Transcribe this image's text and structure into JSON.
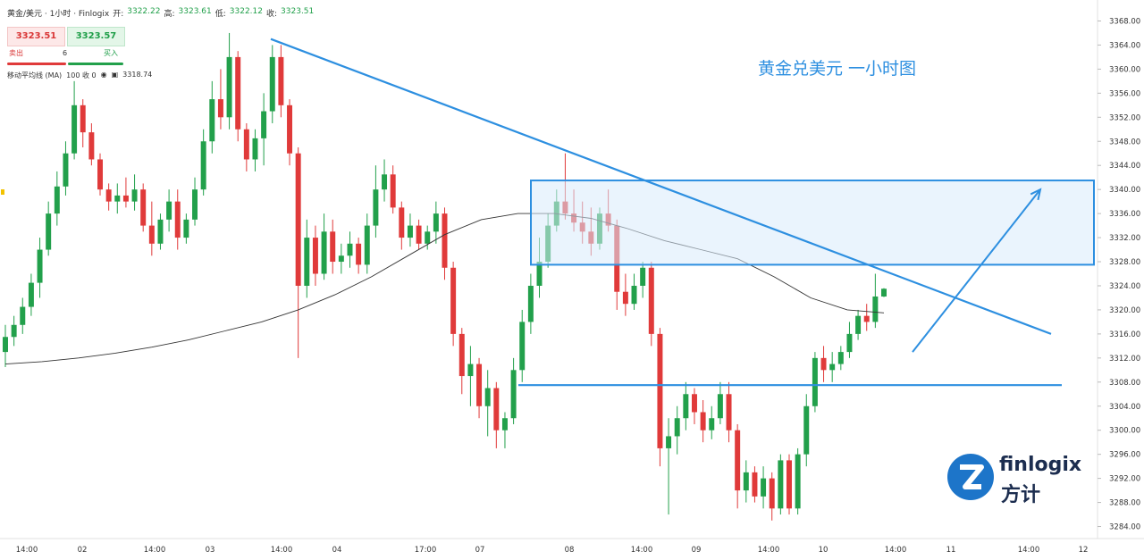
{
  "header": {
    "symbol": "黄金/美元 · 1小时 · Finlogix",
    "open_label": "开:",
    "open": "3322.22",
    "high_label": "高:",
    "high": "3323.61",
    "low_label": "低:",
    "low": "3322.12",
    "close_label": "收:",
    "close": "3323.51"
  },
  "trade": {
    "sell_price": "3323.51",
    "buy_price": "3323.57",
    "sell_label": "卖出",
    "buy_label": "买入",
    "quantity": "6"
  },
  "indicator": {
    "name": "移动平均线 (MA)",
    "params": "100 收 0",
    "icon": "eye-icon",
    "value": "3318.74"
  },
  "annotation": "黄金兑美元 一小时图",
  "logo": {
    "en": "finlogix",
    "cn": "方计"
  },
  "colors": {
    "up": "#22a04b",
    "down": "#e03a3a",
    "accent": "#2d8fe0",
    "ma": "#333333"
  },
  "chart_data": {
    "type": "candlestick",
    "ylim": [
      3282,
      3370
    ],
    "y_ticks": [
      3284.0,
      3288.0,
      3292.0,
      3296.0,
      3300.0,
      3304.0,
      3308.0,
      3312.0,
      3316.0,
      3320.0,
      3324.0,
      3328.0,
      3332.0,
      3336.0,
      3340.0,
      3344.0,
      3348.0,
      3352.0,
      3356.0,
      3360.0,
      3364.0,
      3368.0
    ],
    "x_tick_labels": [
      "14:00",
      "02",
      "14:00",
      "03",
      "14:00",
      "04",
      "17:00",
      "07",
      "08",
      "14:00",
      "09",
      "14:00",
      "10",
      "14:00",
      "11",
      "14:00",
      "12"
    ],
    "candles": [
      {
        "o": 3313.0,
        "h": 3317.5,
        "l": 3310.5,
        "c": 3315.5
      },
      {
        "o": 3315.5,
        "h": 3319.0,
        "l": 3314.0,
        "c": 3317.5
      },
      {
        "o": 3317.5,
        "h": 3322.0,
        "l": 3316.0,
        "c": 3320.5
      },
      {
        "o": 3320.5,
        "h": 3326.0,
        "l": 3319.0,
        "c": 3324.5
      },
      {
        "o": 3324.5,
        "h": 3332.0,
        "l": 3322.0,
        "c": 3330.0
      },
      {
        "o": 3330.0,
        "h": 3338.0,
        "l": 3329.0,
        "c": 3336.0
      },
      {
        "o": 3336.0,
        "h": 3343.0,
        "l": 3334.0,
        "c": 3340.5
      },
      {
        "o": 3340.5,
        "h": 3348.0,
        "l": 3339.0,
        "c": 3346.0
      },
      {
        "o": 3346.0,
        "h": 3358.0,
        "l": 3345.0,
        "c": 3354.0
      },
      {
        "o": 3354.0,
        "h": 3355.0,
        "l": 3347.0,
        "c": 3349.5
      },
      {
        "o": 3349.5,
        "h": 3351.0,
        "l": 3344.0,
        "c": 3345.0
      },
      {
        "o": 3345.0,
        "h": 3346.0,
        "l": 3339.0,
        "c": 3340.0
      },
      {
        "o": 3340.0,
        "h": 3341.0,
        "l": 3336.5,
        "c": 3338.0
      },
      {
        "o": 3338.0,
        "h": 3341.0,
        "l": 3336.0,
        "c": 3339.0
      },
      {
        "o": 3339.0,
        "h": 3342.0,
        "l": 3337.0,
        "c": 3338.0
      },
      {
        "o": 3338.0,
        "h": 3342.5,
        "l": 3336.5,
        "c": 3340.0
      },
      {
        "o": 3340.0,
        "h": 3341.0,
        "l": 3333.0,
        "c": 3334.0
      },
      {
        "o": 3334.0,
        "h": 3338.0,
        "l": 3329.0,
        "c": 3331.0
      },
      {
        "o": 3331.0,
        "h": 3336.0,
        "l": 3330.0,
        "c": 3335.0
      },
      {
        "o": 3335.0,
        "h": 3340.0,
        "l": 3333.0,
        "c": 3338.0
      },
      {
        "o": 3338.0,
        "h": 3340.0,
        "l": 3330.0,
        "c": 3332.0
      },
      {
        "o": 3332.0,
        "h": 3336.0,
        "l": 3331.0,
        "c": 3335.0
      },
      {
        "o": 3335.0,
        "h": 3342.0,
        "l": 3334.0,
        "c": 3340.0
      },
      {
        "o": 3340.0,
        "h": 3350.0,
        "l": 3339.0,
        "c": 3348.0
      },
      {
        "o": 3348.0,
        "h": 3358.0,
        "l": 3346.0,
        "c": 3355.0
      },
      {
        "o": 3355.0,
        "h": 3360.0,
        "l": 3350.0,
        "c": 3352.0
      },
      {
        "o": 3352.0,
        "h": 3366.0,
        "l": 3350.0,
        "c": 3362.0
      },
      {
        "o": 3362.0,
        "h": 3363.0,
        "l": 3348.0,
        "c": 3350.0
      },
      {
        "o": 3350.0,
        "h": 3351.0,
        "l": 3343.0,
        "c": 3345.0
      },
      {
        "o": 3345.0,
        "h": 3350.0,
        "l": 3343.0,
        "c": 3348.5
      },
      {
        "o": 3348.5,
        "h": 3356.0,
        "l": 3344.0,
        "c": 3353.0
      },
      {
        "o": 3353.0,
        "h": 3364.0,
        "l": 3351.0,
        "c": 3362.0
      },
      {
        "o": 3362.0,
        "h": 3364.0,
        "l": 3352.0,
        "c": 3354.0
      },
      {
        "o": 3354.0,
        "h": 3355.0,
        "l": 3344.0,
        "c": 3346.0
      },
      {
        "o": 3346.0,
        "h": 3347.0,
        "l": 3312.0,
        "c": 3324.0
      },
      {
        "o": 3324.0,
        "h": 3335.0,
        "l": 3322.0,
        "c": 3332.0
      },
      {
        "o": 3332.0,
        "h": 3334.0,
        "l": 3324.0,
        "c": 3326.0
      },
      {
        "o": 3326.0,
        "h": 3336.0,
        "l": 3325.0,
        "c": 3333.0
      },
      {
        "o": 3333.0,
        "h": 3335.0,
        "l": 3326.0,
        "c": 3328.0
      },
      {
        "o": 3328.0,
        "h": 3331.0,
        "l": 3326.0,
        "c": 3329.0
      },
      {
        "o": 3329.0,
        "h": 3333.0,
        "l": 3327.0,
        "c": 3331.0
      },
      {
        "o": 3331.0,
        "h": 3332.0,
        "l": 3326.0,
        "c": 3327.5
      },
      {
        "o": 3327.5,
        "h": 3336.0,
        "l": 3326.0,
        "c": 3334.0
      },
      {
        "o": 3334.0,
        "h": 3344.0,
        "l": 3332.0,
        "c": 3340.0
      },
      {
        "o": 3340.0,
        "h": 3345.0,
        "l": 3338.0,
        "c": 3342.5
      },
      {
        "o": 3342.5,
        "h": 3344.0,
        "l": 3336.0,
        "c": 3337.0
      },
      {
        "o": 3337.0,
        "h": 3338.0,
        "l": 3330.0,
        "c": 3332.0
      },
      {
        "o": 3332.0,
        "h": 3336.0,
        "l": 3330.5,
        "c": 3334.0
      },
      {
        "o": 3334.0,
        "h": 3335.0,
        "l": 3330.0,
        "c": 3331.0
      },
      {
        "o": 3331.0,
        "h": 3334.0,
        "l": 3330.0,
        "c": 3333.0
      },
      {
        "o": 3333.0,
        "h": 3338.0,
        "l": 3331.0,
        "c": 3336.0
      },
      {
        "o": 3336.0,
        "h": 3337.0,
        "l": 3325.0,
        "c": 3327.0
      },
      {
        "o": 3327.0,
        "h": 3328.0,
        "l": 3314.0,
        "c": 3316.0
      },
      {
        "o": 3316.0,
        "h": 3317.0,
        "l": 3306.0,
        "c": 3309.0
      },
      {
        "o": 3309.0,
        "h": 3314.0,
        "l": 3304.0,
        "c": 3311.0
      },
      {
        "o": 3311.0,
        "h": 3312.0,
        "l": 3302.0,
        "c": 3304.0
      },
      {
        "o": 3304.0,
        "h": 3310.0,
        "l": 3299.0,
        "c": 3307.0
      },
      {
        "o": 3307.0,
        "h": 3308.0,
        "l": 3297.0,
        "c": 3300.0
      },
      {
        "o": 3300.0,
        "h": 3303.0,
        "l": 3297.0,
        "c": 3302.0
      },
      {
        "o": 3302.0,
        "h": 3312.0,
        "l": 3301.0,
        "c": 3310.0
      },
      {
        "o": 3310.0,
        "h": 3320.0,
        "l": 3308.0,
        "c": 3318.0
      },
      {
        "o": 3318.0,
        "h": 3326.0,
        "l": 3316.0,
        "c": 3324.0
      },
      {
        "o": 3324.0,
        "h": 3332.0,
        "l": 3322.0,
        "c": 3328.0
      },
      {
        "o": 3328.0,
        "h": 3336.0,
        "l": 3327.0,
        "c": 3334.0
      },
      {
        "o": 3334.0,
        "h": 3340.0,
        "l": 3333.0,
        "c": 3338.0
      },
      {
        "o": 3338.0,
        "h": 3346.0,
        "l": 3335.0,
        "c": 3336.0
      },
      {
        "o": 3336.0,
        "h": 3340.0,
        "l": 3333.0,
        "c": 3334.5
      },
      {
        "o": 3334.5,
        "h": 3338.0,
        "l": 3331.0,
        "c": 3333.0
      },
      {
        "o": 3333.0,
        "h": 3337.0,
        "l": 3329.0,
        "c": 3331.0
      },
      {
        "o": 3331.0,
        "h": 3337.0,
        "l": 3330.0,
        "c": 3336.0
      },
      {
        "o": 3336.0,
        "h": 3340.0,
        "l": 3333.0,
        "c": 3334.0
      },
      {
        "o": 3334.0,
        "h": 3335.0,
        "l": 3320.0,
        "c": 3323.0
      },
      {
        "o": 3323.0,
        "h": 3326.0,
        "l": 3319.0,
        "c": 3321.0
      },
      {
        "o": 3321.0,
        "h": 3326.0,
        "l": 3320.0,
        "c": 3324.0
      },
      {
        "o": 3324.0,
        "h": 3328.0,
        "l": 3322.0,
        "c": 3327.0
      },
      {
        "o": 3327.0,
        "h": 3328.0,
        "l": 3314.0,
        "c": 3316.0
      },
      {
        "o": 3316.0,
        "h": 3317.0,
        "l": 3294.0,
        "c": 3297.0
      },
      {
        "o": 3297.0,
        "h": 3302.0,
        "l": 3286.0,
        "c": 3299.0
      },
      {
        "o": 3299.0,
        "h": 3304.0,
        "l": 3296.0,
        "c": 3302.0
      },
      {
        "o": 3302.0,
        "h": 3308.0,
        "l": 3300.0,
        "c": 3306.0
      },
      {
        "o": 3306.0,
        "h": 3307.0,
        "l": 3301.0,
        "c": 3303.0
      },
      {
        "o": 3303.0,
        "h": 3305.0,
        "l": 3298.0,
        "c": 3300.0
      },
      {
        "o": 3300.0,
        "h": 3304.0,
        "l": 3298.5,
        "c": 3302.0
      },
      {
        "o": 3302.0,
        "h": 3308.0,
        "l": 3301.0,
        "c": 3306.0
      },
      {
        "o": 3306.0,
        "h": 3308.0,
        "l": 3298.0,
        "c": 3300.0
      },
      {
        "o": 3300.0,
        "h": 3301.0,
        "l": 3287.0,
        "c": 3290.0
      },
      {
        "o": 3290.0,
        "h": 3295.0,
        "l": 3288.0,
        "c": 3293.0
      },
      {
        "o": 3293.0,
        "h": 3294.0,
        "l": 3288.0,
        "c": 3289.0
      },
      {
        "o": 3289.0,
        "h": 3294.0,
        "l": 3287.0,
        "c": 3292.0
      },
      {
        "o": 3292.0,
        "h": 3293.0,
        "l": 3285.0,
        "c": 3287.0
      },
      {
        "o": 3287.0,
        "h": 3296.0,
        "l": 3286.0,
        "c": 3295.0
      },
      {
        "o": 3295.0,
        "h": 3296.0,
        "l": 3286.0,
        "c": 3287.0
      },
      {
        "o": 3287.0,
        "h": 3297.0,
        "l": 3286.0,
        "c": 3296.0
      },
      {
        "o": 3296.0,
        "h": 3306.0,
        "l": 3294.0,
        "c": 3304.0
      },
      {
        "o": 3304.0,
        "h": 3313.0,
        "l": 3303.0,
        "c": 3312.0
      },
      {
        "o": 3312.0,
        "h": 3314.0,
        "l": 3308.0,
        "c": 3310.0
      },
      {
        "o": 3310.0,
        "h": 3313.0,
        "l": 3308.0,
        "c": 3311.0
      },
      {
        "o": 3311.0,
        "h": 3314.0,
        "l": 3310.0,
        "c": 3313.0
      },
      {
        "o": 3313.0,
        "h": 3318.0,
        "l": 3312.0,
        "c": 3316.0
      },
      {
        "o": 3316.0,
        "h": 3320.0,
        "l": 3315.0,
        "c": 3319.0
      },
      {
        "o": 3319.0,
        "h": 3321.0,
        "l": 3316.5,
        "c": 3318.0
      },
      {
        "o": 3318.0,
        "h": 3326.0,
        "l": 3317.0,
        "c": 3322.22
      },
      {
        "o": 3322.22,
        "h": 3323.61,
        "l": 3322.12,
        "c": 3323.51
      }
    ],
    "ma100": [
      3311.0,
      3311.4,
      3312.0,
      3312.8,
      3313.8,
      3315.0,
      3316.5,
      3318.0,
      3320.0,
      3322.5,
      3325.5,
      3329.0,
      3332.5,
      3335.0,
      3336.0,
      3336.0,
      3335.2,
      3333.5,
      3331.5,
      3330.0,
      3328.5,
      3325.5,
      3322.0,
      3320.0,
      3319.5
    ],
    "resistance_zone": {
      "y_low": 3327.5,
      "y_high": 3341.5
    },
    "downtrend_line": {
      "y_start": 3365.0,
      "y_end": 3316.0
    },
    "support_line": {
      "y": 3307.5
    },
    "projection_arrow": {
      "y_start": 3313.0,
      "y_end": 3340.0
    }
  }
}
